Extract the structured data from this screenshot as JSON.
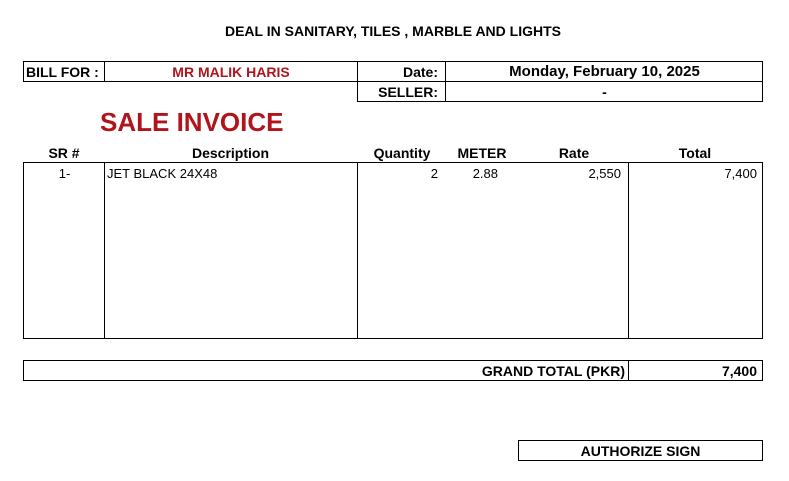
{
  "header": {
    "tagline": "DEAL IN SANITARY, TILES , MARBLE AND LIGHTS"
  },
  "bill": {
    "bill_for_label": "BILL FOR :",
    "customer": "MR MALIK HARIS",
    "date_label": "Date:",
    "date": "Monday, February 10, 2025",
    "seller_label": "SELLER:",
    "seller": "-"
  },
  "title": "SALE INVOICE",
  "columns": [
    "SR #",
    "Description",
    "Quantity",
    "METER",
    "Rate",
    "Total"
  ],
  "items": [
    {
      "sr": "1-",
      "description": "JET BLACK 24X48",
      "quantity": "2",
      "meter": "2.88",
      "rate": "2,550",
      "total": "7,400"
    }
  ],
  "grand_total": {
    "label": "GRAND TOTAL (PKR)",
    "value": "7,400"
  },
  "authorize": "AUTHORIZE SIGN",
  "colors": {
    "accent": "#b0141c"
  }
}
